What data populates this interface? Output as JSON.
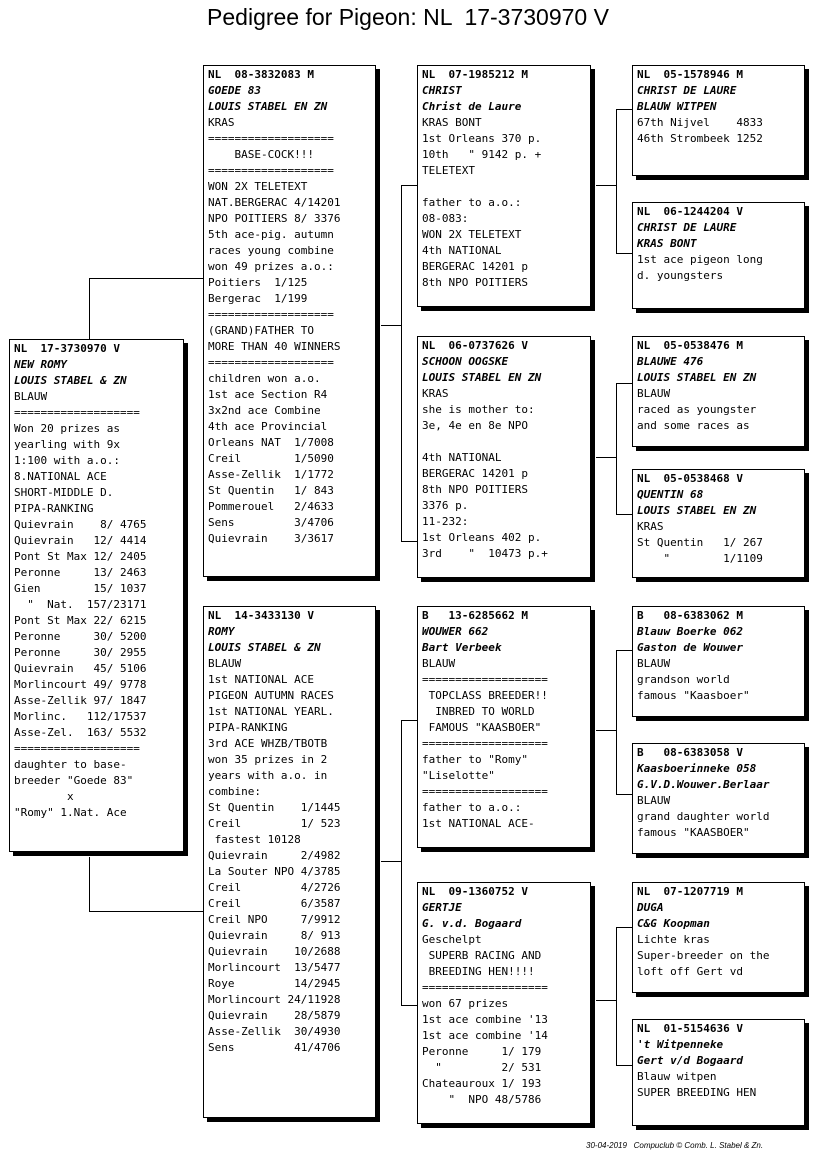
{
  "title": "Pedigree for Pigeon: NL  17-3730970 V",
  "footer": "30-04-2019   Compuclub © Comb. L. Stabel & Zn.",
  "cards": {
    "subject": {
      "header": "NL  17-3730970 V",
      "lines": [
        "NEW ROMY",
        "LOUIS STABEL & ZN",
        "BLAUW",
        "===================",
        "Won 20 prizes as",
        "yearling with 9x",
        "1:100 with a.o.:",
        "8.NATIONAL ACE",
        "SHORT-MIDDLE D.",
        "PIPA-RANKING",
        "Quievrain    8/ 4765",
        "Quievrain   12/ 4414",
        "Pont St Max 12/ 2405",
        "Peronne     13/ 2463",
        "Gien        15/ 1037",
        "  \"  Nat.  157/23171",
        "Pont St Max 22/ 6215",
        "Peronne     30/ 5200",
        "Peronne     30/ 2955",
        "Quievrain   45/ 5106",
        "Morlincourt 49/ 9778",
        "Asse-Zellik 97/ 1847",
        "Morlinc.   112/17537",
        "Asse-Zel.  163/ 5532",
        "===================",
        "daughter to base-",
        "breeder \"Goede 83\"",
        "        x",
        "\"Romy\" 1.Nat. Ace"
      ]
    },
    "sire": {
      "header": "NL  08-3832083 M",
      "lines": [
        "GOEDE 83",
        "LOUIS STABEL EN ZN",
        "KRAS",
        "===================",
        "    BASE-COCK!!!",
        "===================",
        "WON 2X TELETEXT",
        "NAT.BERGERAC 4/14201",
        "NPO POITIERS 8/ 3376",
        "5th ace-pig. autumn",
        "races young combine",
        "won 49 prizes a.o.:",
        "Poitiers  1/125",
        "Bergerac  1/199",
        "===================",
        "(GRAND)FATHER TO",
        "MORE THAN 40 WINNERS",
        "===================",
        "children won a.o.",
        "1st ace Section R4",
        "3x2nd ace Combine",
        "4th ace Provincial",
        "Orleans NAT  1/7008",
        "Creil        1/5090",
        "Asse-Zellik  1/1772",
        "St Quentin   1/ 843",
        "Pommerouel   2/4633",
        "Sens         3/4706",
        "Quievrain    3/3617"
      ]
    },
    "dam": {
      "header": "NL  14-3433130 V",
      "lines": [
        "ROMY",
        "LOUIS STABEL & ZN",
        "BLAUW",
        "1st NATIONAL ACE",
        "PIGEON AUTUMN RACES",
        "1st NATIONAL YEARL.",
        "PIPA-RANKING",
        "3rd ACE WHZB/TBOTB",
        "won 35 prizes in 2",
        "years with a.o. in",
        "combine:",
        "St Quentin    1/1445",
        "Creil         1/ 523",
        " fastest 10128",
        "Quievrain     2/4982",
        "La Souter NPO 4/3785",
        "Creil         4/2726",
        "Creil         6/3587",
        "Creil NPO     7/9912",
        "Quievrain     8/ 913",
        "Quievrain    10/2688",
        "Morlincourt  13/5477",
        "Roye         14/2945",
        "Morlincourt 24/11928",
        "Quievrain    28/5879",
        "Asse-Zellik  30/4930",
        "Sens         41/4706"
      ]
    },
    "ss": {
      "header": "NL  07-1985212 M",
      "lines": [
        "CHRIST",
        "Christ de Laure",
        "KRAS BONT",
        "1st Orleans 370 p.",
        "10th   \" 9142 p. +",
        "TELETEXT",
        "",
        "father to a.o.:",
        "08-083:",
        "WON 2X TELETEXT",
        "4th NATIONAL",
        "BERGERAC 14201 p",
        "8th NPO POITIERS"
      ]
    },
    "sd": {
      "header": "NL  06-0737626 V",
      "lines": [
        "SCHOON OOGSKE",
        "LOUIS STABEL EN ZN",
        "KRAS",
        "she is mother to:",
        "3e, 4e en 8e NPO",
        "",
        "4th NATIONAL",
        "BERGERAC 14201 p",
        "8th NPO POITIERS",
        "3376 p.",
        "11-232:",
        "1st Orleans 402 p.",
        "3rd    \"  10473 p.+"
      ]
    },
    "ds": {
      "header": "B   13-6285662 M",
      "lines": [
        "WOUWER 662",
        "Bart Verbeek",
        "BLAUW",
        "===================",
        " TOPCLASS BREEDER!!",
        "  INBRED TO WORLD",
        " FAMOUS \"KAASBOER\"",
        "===================",
        "father to \"Romy\"",
        "\"Liselotte\"",
        "===================",
        "father to a.o.:",
        "1st NATIONAL ACE-"
      ]
    },
    "dd": {
      "header": "NL  09-1360752 V",
      "lines": [
        "GERTJE",
        "G. v.d. Bogaard",
        "Geschelpt",
        " SUPERB RACING AND",
        " BREEDING HEN!!!!",
        "===================",
        "won 67 prizes",
        "1st ace combine '13",
        "1st ace combine '14",
        "Peronne     1/ 179",
        "  \"         2/ 531",
        "Chateauroux 1/ 193",
        "    \"  NPO 48/5786"
      ]
    },
    "sss": {
      "header": "NL  05-1578946 M",
      "lines": [
        "CHRIST DE LAURE",
        "BLAUW WITPEN",
        "67th Nijvel    4833",
        "46th Strombeek 1252"
      ]
    },
    "ssd": {
      "header": "NL  06-1244204 V",
      "lines": [
        "CHRIST DE LAURE",
        "KRAS BONT",
        "1st ace pigeon long",
        "d. youngsters"
      ]
    },
    "sds": {
      "header": "NL  05-0538476 M",
      "lines": [
        "BLAUWE 476",
        "LOUIS STABEL EN ZN",
        "BLAUW",
        "raced as youngster",
        "and some races as"
      ]
    },
    "sdd": {
      "header": "NL  05-0538468 V",
      "lines": [
        "QUENTIN 68",
        "LOUIS STABEL EN ZN",
        "KRAS",
        "St Quentin   1/ 267",
        "    \"        1/1109"
      ]
    },
    "dss": {
      "header": "B   08-6383062 M",
      "lines": [
        "Blauw Boerke 062",
        "Gaston de Wouwer",
        "BLAUW",
        "grandson world",
        "famous \"Kaasboer\""
      ]
    },
    "dsd": {
      "header": "B   08-6383058 V",
      "lines": [
        "Kaasboerinneke 058",
        "G.V.D.Wouwer.Berlaar",
        "BLAUW",
        "grand daughter world",
        "famous \"KAASBOER\""
      ]
    },
    "dds": {
      "header": "NL  07-1207719 M",
      "lines": [
        "DUGA",
        "C&G Koopman",
        "Lichte kras",
        "Super-breeder on the",
        "loft off Gert vd"
      ]
    },
    "ddd": {
      "header": "NL  01-5154636 V",
      "lines": [
        "'t Witpenneke",
        "Gert v/d Bogaard",
        "Blauw witpen",
        "SUPER BREEDING HEN"
      ]
    }
  }
}
